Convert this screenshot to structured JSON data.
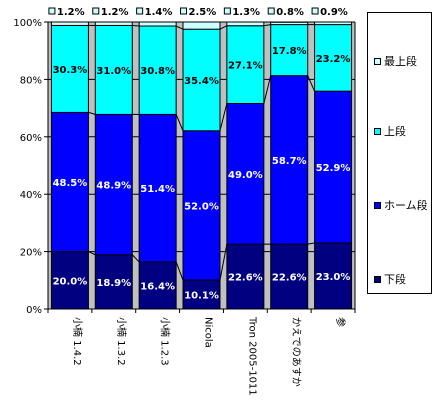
{
  "chart_data": {
    "type": "bar",
    "stacked": true,
    "categories": [
      "小楠 1.4.2",
      "小楠 1.3.2",
      "小楠 1.2.3",
      "Nicola",
      "Tron 2005-1011",
      "かえでのあすか",
      "参"
    ],
    "series": [
      {
        "name": "下段",
        "values": [
          20.0,
          18.9,
          16.4,
          10.1,
          22.6,
          22.6,
          23.0
        ],
        "labels": [
          "20.0%",
          "18.9%",
          "16.4%",
          "10.1%",
          "22.6%",
          "22.6%",
          "23.0%"
        ],
        "color": "#000080"
      },
      {
        "name": "ホーム段",
        "values": [
          48.5,
          48.9,
          51.4,
          52.0,
          49.0,
          58.7,
          52.9
        ],
        "labels": [
          "48.5%",
          "48.9%",
          "51.4%",
          "52.0%",
          "49.0%",
          "58.7%",
          "52.9%"
        ],
        "color": "#0000ff"
      },
      {
        "name": "上段",
        "values": [
          30.3,
          31.0,
          30.8,
          35.4,
          27.1,
          17.8,
          23.2
        ],
        "labels": [
          "30.3%",
          "31.0%",
          "30.8%",
          "35.4%",
          "27.1%",
          "17.8%",
          "23.2%"
        ],
        "color": "#00ffff"
      },
      {
        "name": "最上段",
        "values": [
          1.2,
          1.2,
          1.4,
          2.5,
          1.3,
          0.8,
          0.9
        ],
        "labels": [
          "1.2%",
          "1.2%",
          "1.4%",
          "2.5%",
          "1.3%",
          "0.8%",
          "0.9%"
        ],
        "color": "#ccffff"
      }
    ],
    "yticks": [
      "0%",
      "20%",
      "40%",
      "60%",
      "80%",
      "100%"
    ],
    "ylim": [
      0,
      100
    ],
    "grid": true,
    "legend": "right",
    "plot_background": "#c0c0c0"
  }
}
